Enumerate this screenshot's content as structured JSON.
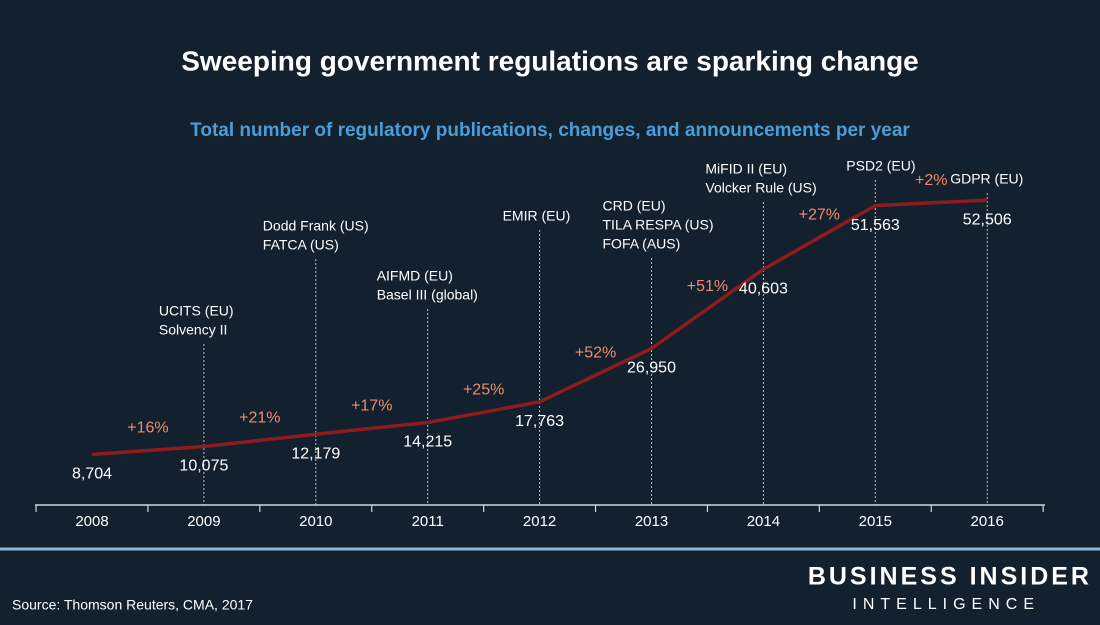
{
  "chart_data": {
    "type": "line",
    "title": "Sweeping government regulations are sparking change",
    "subtitle": "Total number of regulatory publications, changes, and announcements per year",
    "categories": [
      "2008",
      "2009",
      "2010",
      "2011",
      "2012",
      "2013",
      "2014",
      "2015",
      "2016"
    ],
    "series": [
      {
        "color": "#8e1c1c",
        "values": [
          8704,
          10075,
          12179,
          14215,
          17763,
          26950,
          40603,
          51563,
          52506
        ],
        "value_labels": [
          "8,704",
          "10,075",
          "12,179",
          "14,215",
          "17,763",
          "26,950",
          "40,603",
          "51,563",
          "52,506"
        ]
      }
    ],
    "changes": [
      "+16%",
      "+21%",
      "+17%",
      "+25%",
      "+52%",
      "+51%",
      "+27%",
      "+2%"
    ],
    "events": [
      null,
      [
        "UCITS (EU)",
        "Solvency II"
      ],
      [
        "Dodd Frank (US)",
        "FATCA (US)"
      ],
      [
        "AIFMD (EU)",
        "Basel III (global)"
      ],
      [
        "EMIR (EU)"
      ],
      [
        "CRD (EU)",
        "TILA RESPA (US)",
        "FOFA (AUS)"
      ],
      [
        "MiFID II (EU)",
        "Volcker Rule (US)"
      ],
      [
        "PSD2 (EU)"
      ],
      [
        "GDPR (EU)"
      ]
    ],
    "ylim": [
      0,
      62000
    ],
    "source": "Source: Thomson Reuters, CMA, 2017",
    "brand": "BUSINESS INSIDER",
    "brand_sub": "INTELLIGENCE"
  }
}
